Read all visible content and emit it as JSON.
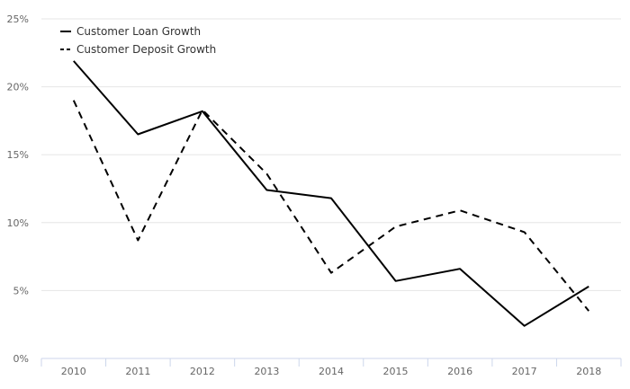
{
  "chart_data": {
    "type": "line",
    "categories": [
      "2010",
      "2011",
      "2012",
      "2013",
      "2014",
      "2015",
      "2016",
      "2017",
      "2018"
    ],
    "series": [
      {
        "name": "Customer Loan Growth",
        "values": [
          21.9,
          16.5,
          18.2,
          12.4,
          11.8,
          5.7,
          6.6,
          2.4,
          5.3
        ],
        "dash": "solid"
      },
      {
        "name": "Customer Deposit Growth",
        "values": [
          19.0,
          8.7,
          18.3,
          13.6,
          6.3,
          9.7,
          10.9,
          9.3,
          3.5
        ],
        "dash": "dashed"
      }
    ],
    "yticks": [
      "0%",
      "5%",
      "10%",
      "15%",
      "20%",
      "25%"
    ],
    "ylim": [
      0,
      25
    ],
    "grid": true,
    "legend_position": "top-left",
    "line_color": "#000000"
  }
}
